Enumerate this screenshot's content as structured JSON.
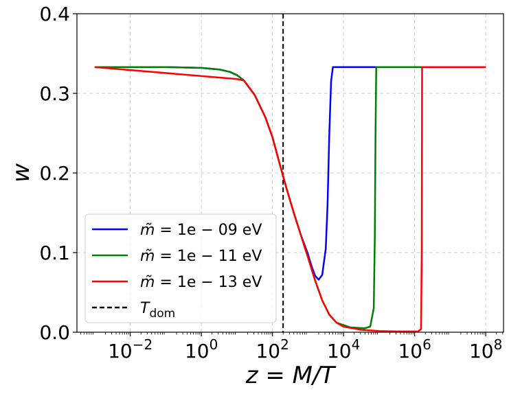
{
  "chart_data": {
    "type": "line",
    "xscale": "log",
    "xlabel": "z = M/T",
    "ylabel": "w",
    "xlim_log10": [
      -3.5,
      8.5
    ],
    "ylim": [
      0.0,
      0.4
    ],
    "yticks": [
      0.0,
      0.1,
      0.2,
      0.3,
      0.4
    ],
    "ytick_labels": [
      "0.0",
      "0.1",
      "0.2",
      "0.3",
      "0.4"
    ],
    "xticks_log10": [
      -2,
      0,
      2,
      4,
      6,
      8
    ],
    "xtick_labels": [
      {
        "base": "10",
        "exp": "−2"
      },
      {
        "base": "10",
        "exp": "0"
      },
      {
        "base": "10",
        "exp": "2"
      },
      {
        "base": "10",
        "exp": "4"
      },
      {
        "base": "10",
        "exp": "6"
      },
      {
        "base": "10",
        "exp": "8"
      }
    ],
    "grid": true,
    "vline": {
      "x_log10": 2.3,
      "label": "T_dom",
      "color": "#000000",
      "style": "dashed"
    },
    "legend": {
      "position": "lower-left",
      "entries": [
        {
          "m": "m̃",
          "eq": " = 1e − 09 eV",
          "color": "#0000ff"
        },
        {
          "m": "m̃",
          "eq": " = 1e − 11 eV",
          "color": "#008000"
        },
        {
          "m": "m̃",
          "eq": " = 1e − 13 eV",
          "color": "#ff0000"
        },
        {
          "main": "T",
          "sub": "dom",
          "color": "#000000",
          "style": "dashed"
        }
      ]
    },
    "series": [
      {
        "name": "m̃ = 1e−09 eV",
        "color": "#0000ff",
        "points": [
          [
            -3,
            0.333
          ],
          [
            -1,
            0.333
          ],
          [
            0,
            0.332
          ],
          [
            0.5,
            0.33
          ],
          [
            0.8,
            0.327
          ],
          [
            1,
            0.323
          ],
          [
            1.2,
            0.316
          ],
          [
            1.5,
            0.298
          ],
          [
            1.8,
            0.27
          ],
          [
            2.0,
            0.245
          ],
          [
            2.2,
            0.212
          ],
          [
            2.4,
            0.18
          ],
          [
            2.6,
            0.15
          ],
          [
            2.8,
            0.122
          ],
          [
            3.0,
            0.098
          ],
          [
            3.1,
            0.083
          ],
          [
            3.2,
            0.071
          ],
          [
            3.3,
            0.066
          ],
          [
            3.4,
            0.072
          ],
          [
            3.5,
            0.105
          ],
          [
            3.55,
            0.16
          ],
          [
            3.6,
            0.25
          ],
          [
            3.65,
            0.315
          ],
          [
            3.7,
            0.333
          ],
          [
            8,
            0.333
          ]
        ]
      },
      {
        "name": "m̃ = 1e−11 eV",
        "color": "#008000",
        "points": [
          [
            -3,
            0.333
          ],
          [
            -1,
            0.333
          ],
          [
            0,
            0.332
          ],
          [
            0.5,
            0.33
          ],
          [
            0.8,
            0.327
          ],
          [
            1,
            0.323
          ],
          [
            1.2,
            0.316
          ],
          [
            1.5,
            0.298
          ],
          [
            1.8,
            0.27
          ],
          [
            2.0,
            0.245
          ],
          [
            2.2,
            0.212
          ],
          [
            2.4,
            0.18
          ],
          [
            2.6,
            0.15
          ],
          [
            2.8,
            0.122
          ],
          [
            3.0,
            0.094
          ],
          [
            3.2,
            0.065
          ],
          [
            3.4,
            0.04
          ],
          [
            3.6,
            0.022
          ],
          [
            3.8,
            0.012
          ],
          [
            4.2,
            0.006
          ],
          [
            4.6,
            0.005
          ],
          [
            4.75,
            0.007
          ],
          [
            4.85,
            0.03
          ],
          [
            4.88,
            0.12
          ],
          [
            4.9,
            0.25
          ],
          [
            4.92,
            0.333
          ],
          [
            8,
            0.333
          ]
        ]
      },
      {
        "name": "m̃ = 1e−13 eV",
        "color": "#ff0000",
        "points": [
          [
            -3,
            0.333
          ],
          [
            1,
            0.318
          ],
          [
            1.2,
            0.316
          ],
          [
            1.5,
            0.298
          ],
          [
            1.8,
            0.27
          ],
          [
            2.0,
            0.245
          ],
          [
            2.2,
            0.212
          ],
          [
            2.4,
            0.18
          ],
          [
            2.6,
            0.15
          ],
          [
            2.8,
            0.122
          ],
          [
            3.0,
            0.094
          ],
          [
            3.2,
            0.065
          ],
          [
            3.4,
            0.04
          ],
          [
            3.6,
            0.022
          ],
          [
            3.8,
            0.012
          ],
          [
            4.0,
            0.007
          ],
          [
            4.5,
            0.003
          ],
          [
            5.0,
            0.0015
          ],
          [
            5.5,
            0.001
          ],
          [
            6.1,
            0.001
          ],
          [
            6.18,
            0.004
          ],
          [
            6.2,
            0.1
          ],
          [
            6.21,
            0.333
          ],
          [
            8,
            0.333
          ]
        ]
      }
    ]
  }
}
